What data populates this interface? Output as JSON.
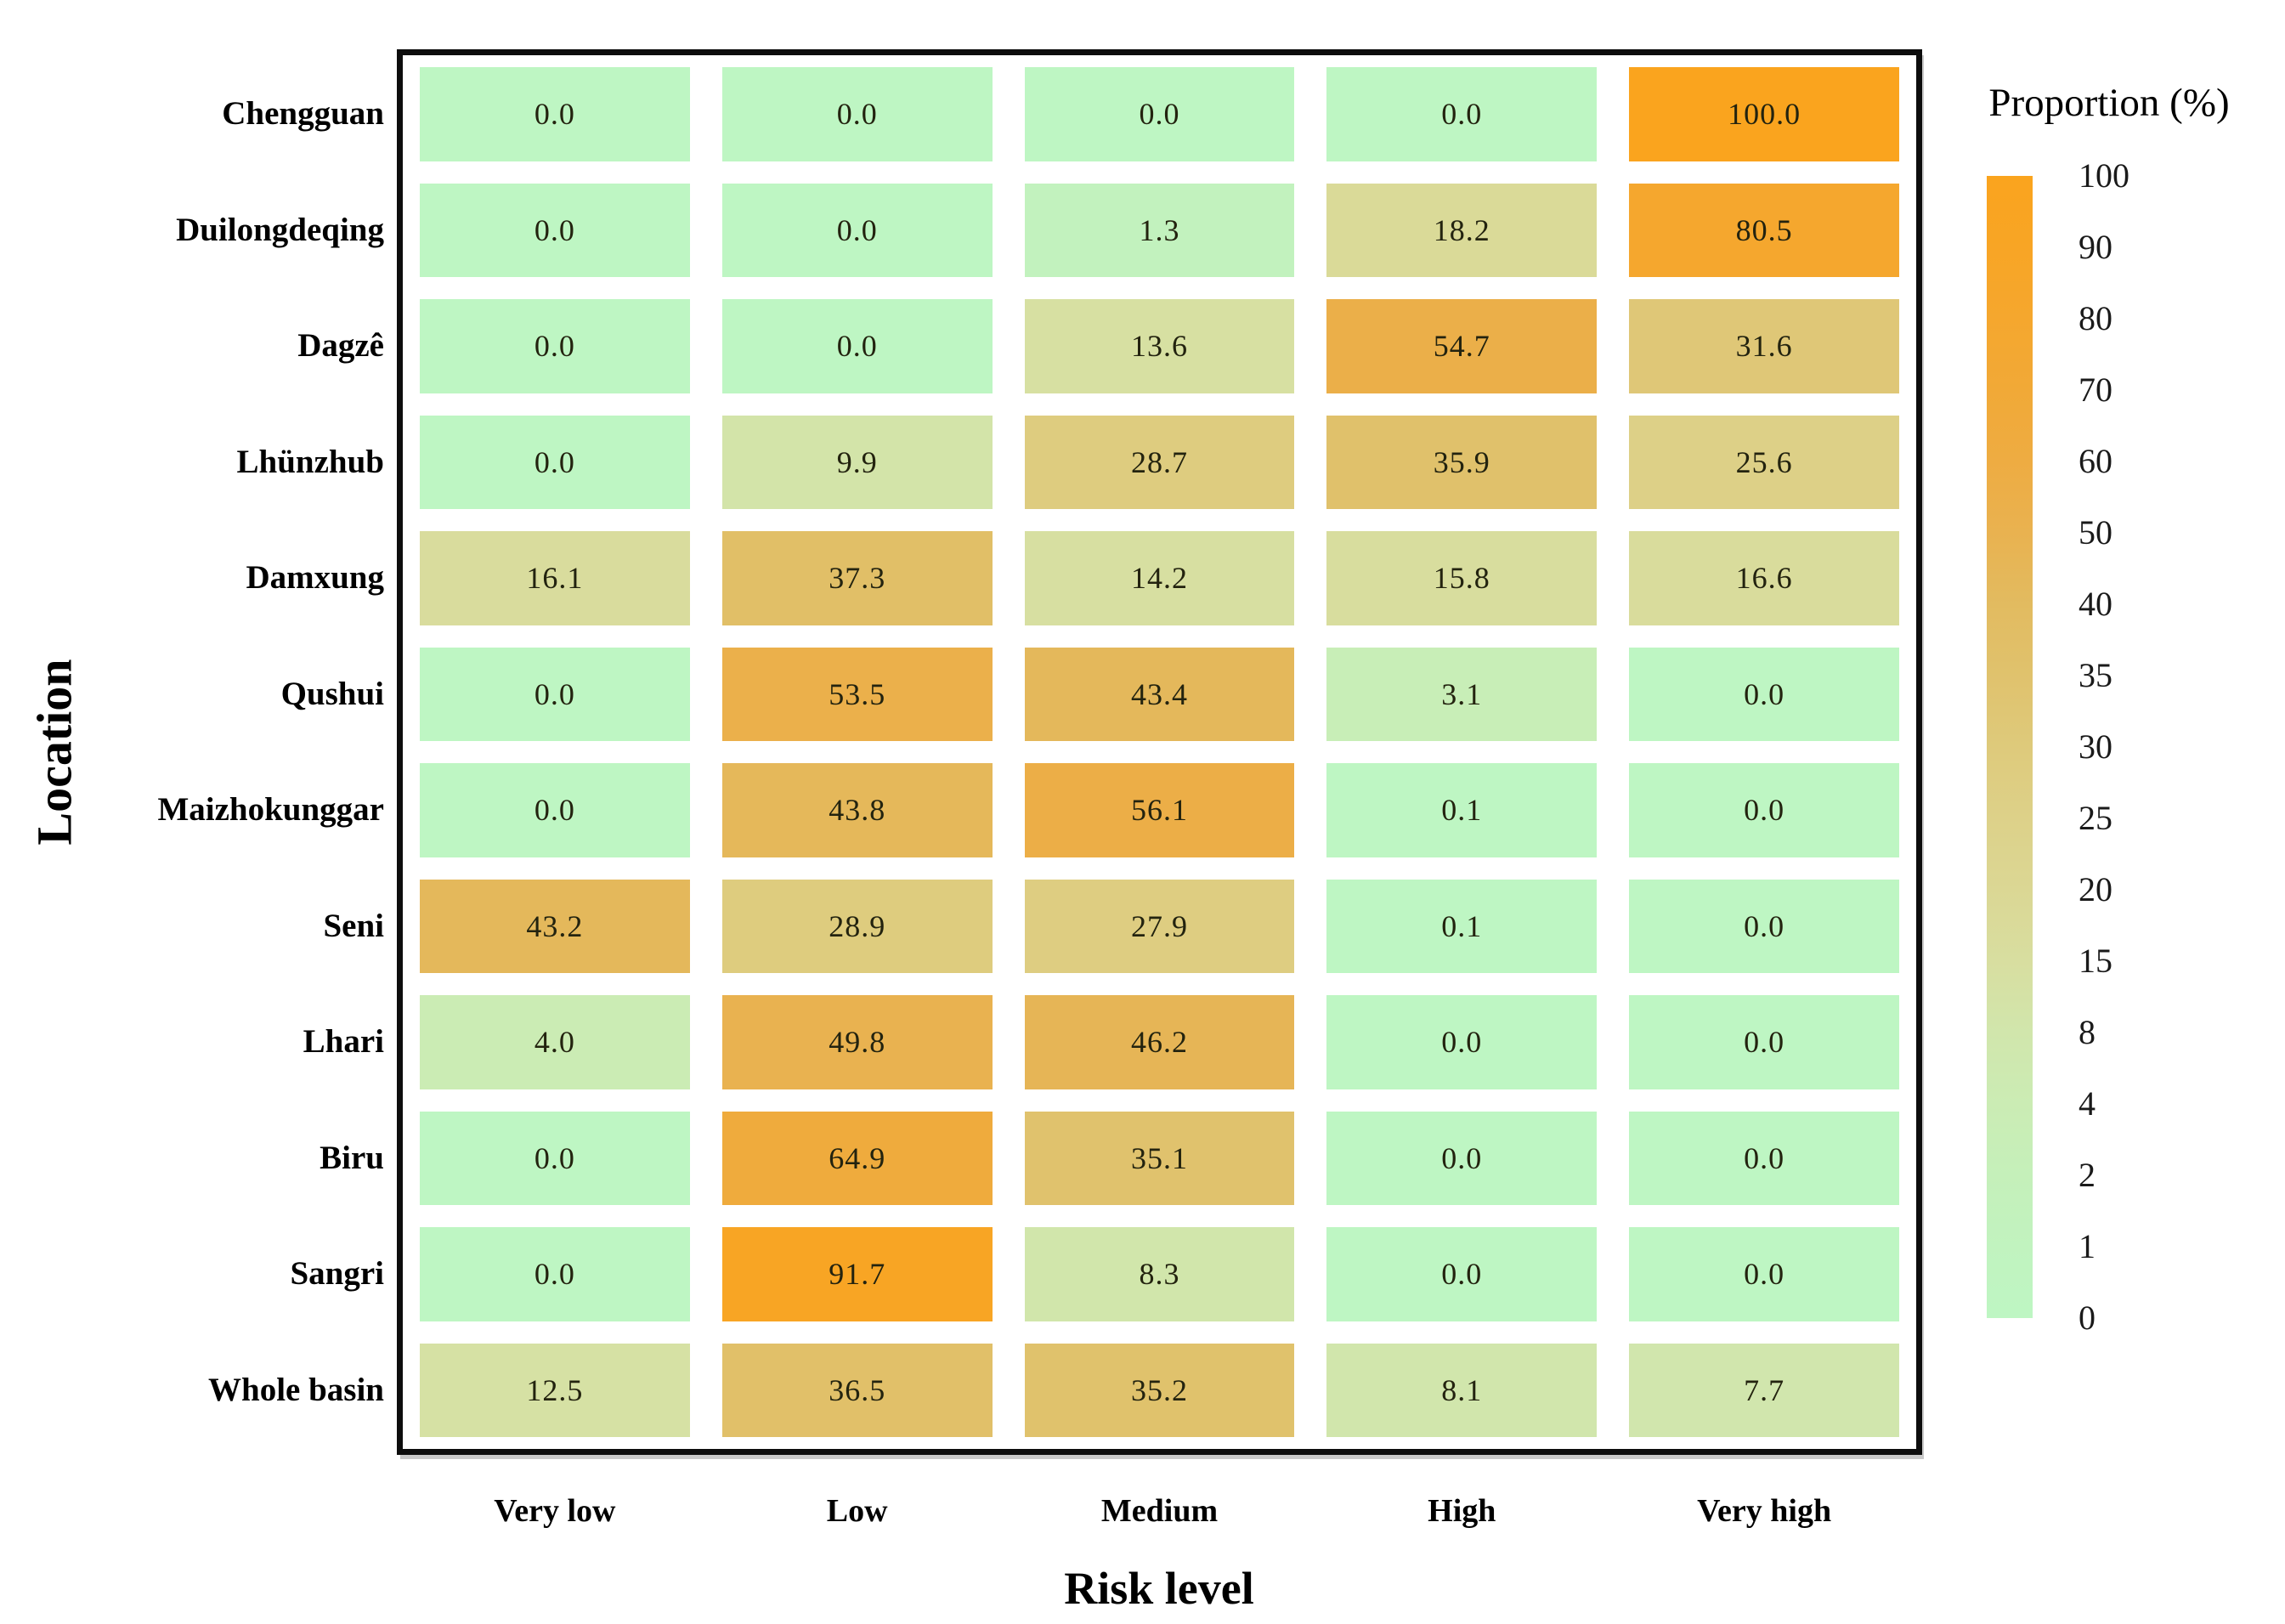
{
  "chart_data": {
    "type": "heatmap",
    "title": "",
    "xlabel": "Risk level",
    "ylabel": "Location",
    "columns": [
      "Very low",
      "Low",
      "Medium",
      "High",
      "Very high"
    ],
    "rows": [
      "Chengguan",
      "Duilongdeqing",
      "Dagzê",
      "Lhünzhub",
      "Damxung",
      "Qushui",
      "Maizhokunggar",
      "Seni",
      "Lhari",
      "Biru",
      "Sangri",
      "Whole basin"
    ],
    "values": [
      [
        0.0,
        0.0,
        0.0,
        0.0,
        100.0
      ],
      [
        0.0,
        0.0,
        1.3,
        18.2,
        80.5
      ],
      [
        0.0,
        0.0,
        13.6,
        54.7,
        31.6
      ],
      [
        0.0,
        9.9,
        28.7,
        35.9,
        25.6
      ],
      [
        16.1,
        37.3,
        14.2,
        15.8,
        16.6
      ],
      [
        0.0,
        53.5,
        43.4,
        3.1,
        0.0
      ],
      [
        0.0,
        43.8,
        56.1,
        0.1,
        0.0
      ],
      [
        43.2,
        28.9,
        27.9,
        0.1,
        0.0
      ],
      [
        4.0,
        49.8,
        46.2,
        0.0,
        0.0
      ],
      [
        0.0,
        64.9,
        35.1,
        0.0,
        0.0
      ],
      [
        0.0,
        91.7,
        8.3,
        0.0,
        0.0
      ],
      [
        12.5,
        36.5,
        35.2,
        8.1,
        7.7
      ]
    ],
    "value_decimals": 1,
    "grid": false,
    "colorbar": {
      "title": "Proportion (%)",
      "position": "right",
      "tick_values": [
        100,
        90,
        80,
        70,
        60,
        50,
        40,
        35,
        30,
        25,
        20,
        15,
        8,
        4,
        2,
        1,
        0
      ],
      "scale_breakpoints": [
        0,
        1,
        2,
        4,
        8,
        15,
        20,
        25,
        30,
        35,
        40,
        50,
        60,
        70,
        80,
        90,
        100
      ],
      "breakpoint_colors": [
        "#BEF6C3",
        "#C1F3BF",
        "#C5F0BA",
        "#CBECB4",
        "#D1E6AC",
        "#D8DEA0",
        "#DBD794",
        "#DDD189",
        "#DECA7B",
        "#E0C26D",
        "#E2BB60",
        "#E9B250",
        "#EEAC42",
        "#F1A937",
        "#F5A72E",
        "#F8A525",
        "#FAA41E"
      ]
    }
  }
}
